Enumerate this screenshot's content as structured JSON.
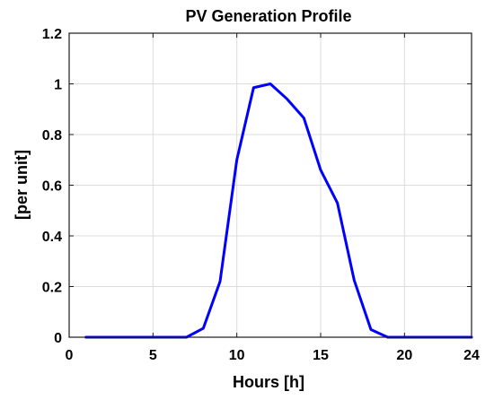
{
  "chart_data": {
    "type": "line",
    "title": "PV Generation Profile",
    "xlabel": "Hours [h]",
    "ylabel": "[per unit]",
    "xlim": [
      0,
      24
    ],
    "ylim": [
      0,
      1.2
    ],
    "xticks": [
      0,
      5,
      10,
      15,
      20,
      24
    ],
    "yticks": [
      0,
      0.2,
      0.4,
      0.6,
      0.8,
      1,
      1.2
    ],
    "xtick_labels": [
      "0",
      "5",
      "10",
      "15",
      "20",
      "24"
    ],
    "ytick_labels": [
      "0",
      "0.2",
      "0.4",
      "0.6",
      "0.8",
      "1",
      "1.2"
    ],
    "grid": true,
    "series": [
      {
        "color": "#0000ff",
        "x": [
          1,
          2,
          3,
          4,
          5,
          6,
          7,
          8,
          9,
          10,
          11,
          12,
          13,
          14,
          15,
          16,
          17,
          18,
          19,
          20,
          21,
          22,
          23,
          24
        ],
        "y": [
          0,
          0,
          0,
          0,
          0,
          0,
          0,
          0.035,
          0.22,
          0.7,
          0.985,
          1.0,
          0.94,
          0.865,
          0.66,
          0.53,
          0.225,
          0.03,
          0,
          0,
          0,
          0,
          0,
          0
        ]
      }
    ]
  }
}
